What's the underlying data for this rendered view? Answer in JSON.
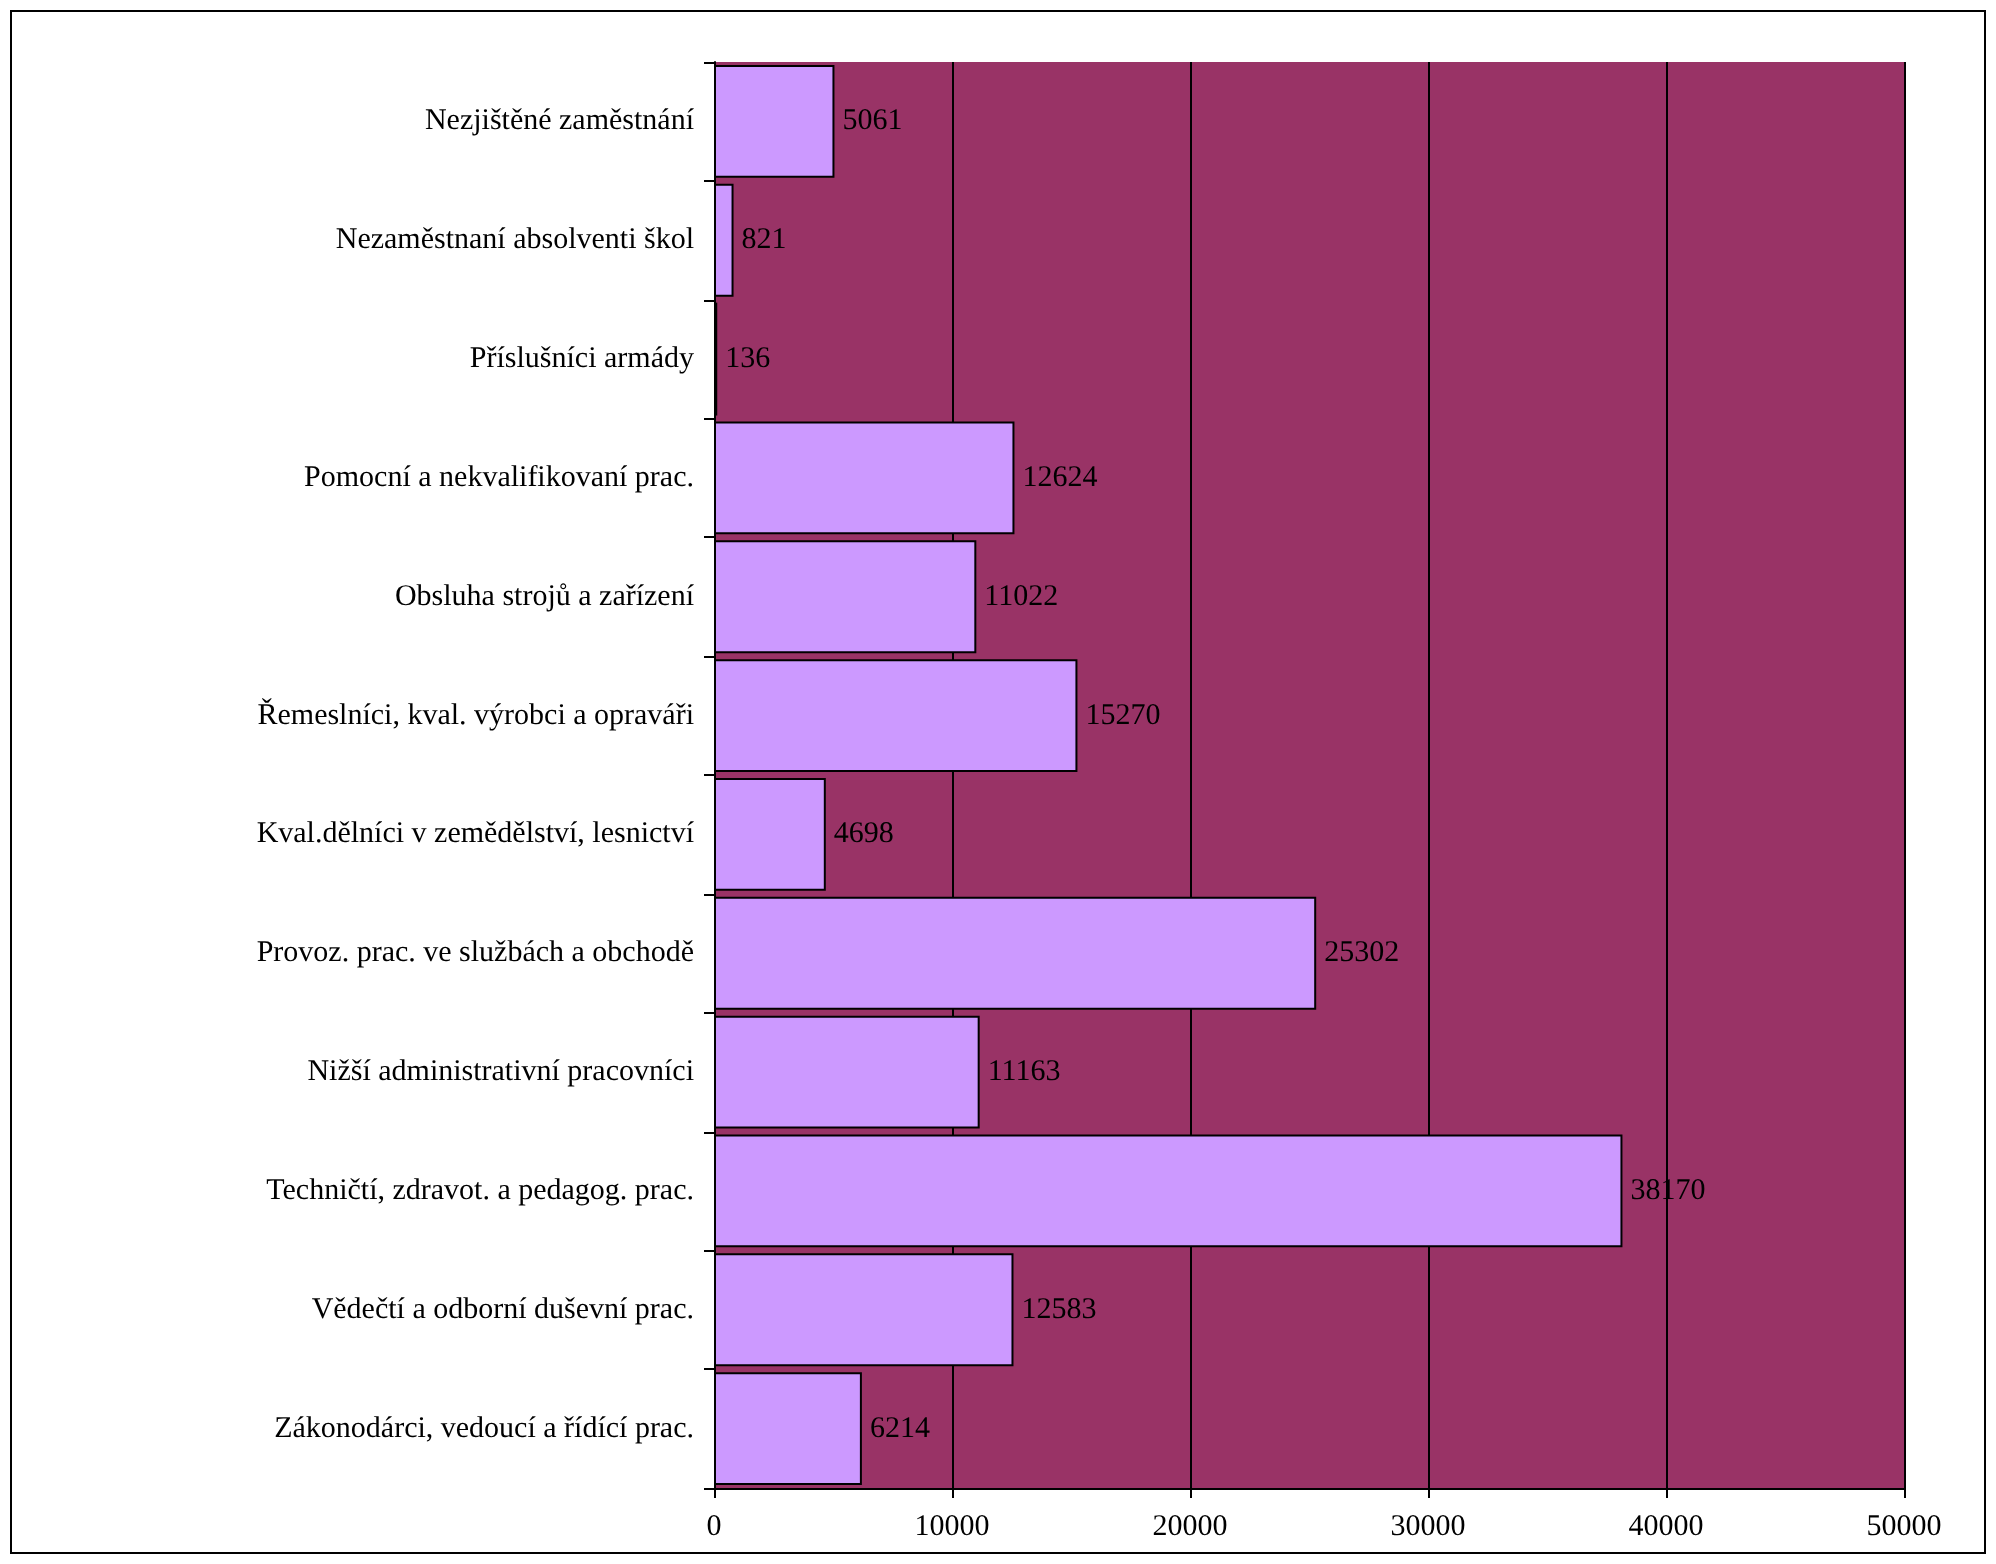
{
  "chart_data": {
    "type": "bar",
    "orientation": "horizontal",
    "categories": [
      "Nezjištěné zaměstnání",
      "Nezaměstnaní absolventi škol",
      "Příslušníci armády",
      "Pomocní a nekvalifikovaní prac.",
      "Obsluha strojů a zařízení",
      "Řemeslníci, kval. výrobci a opraváři",
      "Kval.dělníci v zemědělství, lesnictví",
      "Provoz. prac. ve službách a obchodě",
      "Nižší administrativní pracovníci",
      "Techničtí, zdravot. a pedagog. prac.",
      "Vědečtí a odborní duševní prac.",
      "Zákonodárci, vedoucí a řídící prac."
    ],
    "values": [
      5061,
      821,
      136,
      12624,
      11022,
      15270,
      4698,
      25302,
      11163,
      38170,
      12583,
      6214
    ],
    "color": "#cc99ff",
    "xlim": [
      0,
      50000
    ],
    "xticks": [
      0,
      10000,
      20000,
      30000,
      40000,
      50000
    ],
    "grid": "x",
    "data_labels": true
  }
}
